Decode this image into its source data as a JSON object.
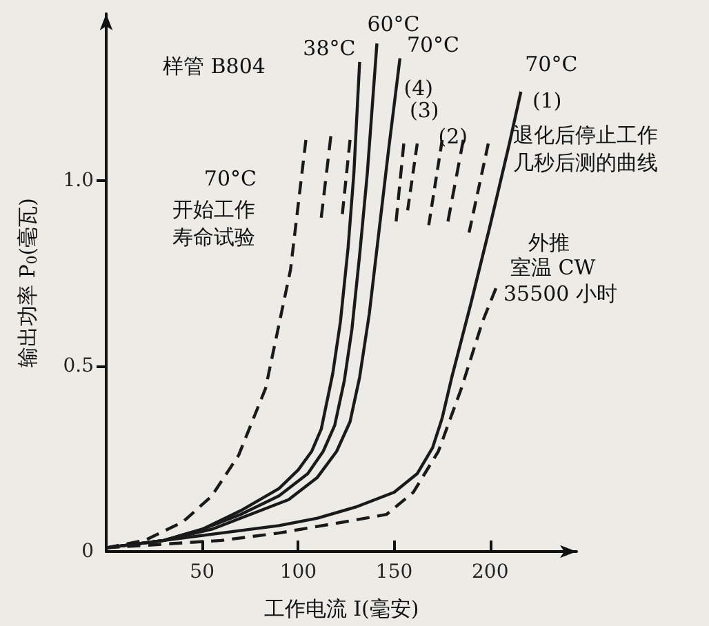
{
  "chart_data": {
    "type": "line",
    "xlabel": "工作电流 I(毫安)",
    "ylabel": "输出功率 P$_{0}$(毫瓦)",
    "xlim": [
      0,
      245
    ],
    "xticks": [
      50,
      100,
      150,
      200
    ],
    "ylim": [
      0,
      1.45
    ],
    "yticks": [
      {
        "value": 0,
        "label": "0"
      },
      {
        "value": 0.5,
        "label": "0.5"
      },
      {
        "value": 1,
        "label": "1.0"
      }
    ],
    "grid": false,
    "marker": "none",
    "series": [
      {
        "color": "#1a1a1a",
        "line_style": "dashed",
        "x": [
          0,
          20,
          40,
          55,
          69,
          83,
          96,
          104
        ],
        "values": [
          0.01,
          0.03,
          0.08,
          0.15,
          0.26,
          0.44,
          0.76,
          1.11
        ]
      },
      {
        "color": "#1a1a1a",
        "line_style": "solid",
        "x": [
          0,
          30,
          50,
          70,
          90,
          100,
          107,
          112,
          118,
          122,
          126,
          129,
          132
        ],
        "values": [
          0.01,
          0.03,
          0.06,
          0.11,
          0.17,
          0.22,
          0.27,
          0.33,
          0.48,
          0.62,
          0.82,
          1.02,
          1.32
        ]
      },
      {
        "color": "#1a1a1a",
        "line_style": "solid",
        "x": [
          0,
          30,
          50,
          70,
          90,
          105,
          113,
          119,
          124,
          128,
          132,
          136,
          141
        ],
        "values": [
          0.01,
          0.03,
          0.06,
          0.1,
          0.15,
          0.21,
          0.27,
          0.34,
          0.46,
          0.6,
          0.8,
          1.02,
          1.37
        ]
      },
      {
        "color": "#1a1a1a",
        "line_style": "solid",
        "x": [
          0,
          30,
          55,
          75,
          95,
          110,
          120,
          127,
          132,
          137,
          142,
          147,
          153
        ],
        "values": [
          0.01,
          0.03,
          0.06,
          0.1,
          0.14,
          0.2,
          0.27,
          0.35,
          0.47,
          0.64,
          0.86,
          1.08,
          1.33
        ]
      },
      {
        "color": "#1a1a1a",
        "line_style": "solid",
        "x": [
          0,
          30,
          60,
          90,
          110,
          130,
          150,
          162,
          170,
          175,
          180,
          190,
          200,
          210,
          216
        ],
        "values": [
          0.01,
          0.03,
          0.05,
          0.07,
          0.09,
          0.12,
          0.16,
          0.21,
          0.28,
          0.36,
          0.47,
          0.67,
          0.88,
          1.1,
          1.24
        ]
      },
      {
        "color": "#1a1a1a",
        "line_style": "dashed",
        "x": [
          0,
          30,
          60,
          90,
          124,
          146,
          160,
          173,
          185,
          196,
          203
        ],
        "values": [
          0.01,
          0.02,
          0.03,
          0.05,
          0.08,
          0.1,
          0.16,
          0.27,
          0.44,
          0.62,
          0.71
        ]
      },
      {
        "color": "#1a1a1a",
        "line_style": "dashed",
        "x": [
          117,
          112
        ],
        "values": [
          1.12,
          0.9
        ]
      },
      {
        "color": "#1a1a1a",
        "line_style": "dashed",
        "x": [
          127,
          123
        ],
        "values": [
          1.11,
          0.91
        ]
      },
      {
        "color": "#1a1a1a",
        "line_style": "dashed",
        "x": [
          155,
          151
        ],
        "values": [
          1.1,
          0.89
        ]
      },
      {
        "color": "#1a1a1a",
        "line_style": "dashed",
        "x": [
          162,
          157
        ],
        "values": [
          1.1,
          0.92
        ]
      },
      {
        "color": "#1a1a1a",
        "line_style": "dashed",
        "x": [
          175,
          168
        ],
        "values": [
          1.11,
          0.88
        ]
      },
      {
        "color": "#1a1a1a",
        "line_style": "dashed",
        "x": [
          186,
          178
        ],
        "values": [
          1.11,
          0.89
        ]
      },
      {
        "color": "#1a1a1a",
        "line_style": "dashed",
        "x": [
          199,
          189
        ],
        "values": [
          1.1,
          0.86
        ]
      }
    ],
    "annotations": [
      "样管 B804",
      {
        "text": "38°C",
        "x": 132,
        "y": 1.32
      },
      {
        "text": "60°C",
        "x": 141,
        "y": 1.37
      },
      {
        "text": "70°C",
        "x": 153,
        "y": 1.33
      },
      {
        "text": "(4)",
        "x": 155,
        "y": 1.25
      },
      "(3)",
      {
        "text": "(2)",
        "x": 173,
        "y": 1.12
      },
      {
        "text": "70°C",
        "x": 216,
        "y": 1.24
      },
      "(1)",
      "退化后停止工作几秒后测的曲线",
      {
        "text": "70°C",
        "x": 102,
        "y": 0.99
      },
      "开始工作寿命试验",
      "外推",
      "室温 CW",
      "35500 小时"
    ]
  }
}
